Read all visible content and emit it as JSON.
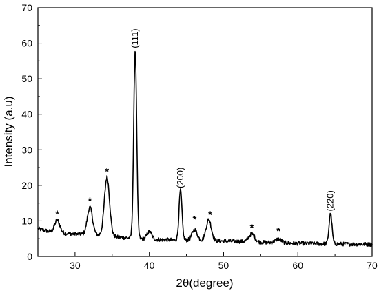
{
  "chart_data": {
    "type": "line",
    "xlabel": "2θ(degree)",
    "ylabel": "Intensity (a.u)",
    "xlim": [
      25,
      70
    ],
    "ylim": [
      0,
      70
    ],
    "x_ticks": [
      30,
      40,
      50,
      60,
      70
    ],
    "y_ticks": [
      0,
      10,
      20,
      30,
      40,
      50,
      60,
      70
    ],
    "grid": false,
    "series": [
      {
        "baseline": [
          [
            25,
            7.8
          ],
          [
            27,
            6.8
          ],
          [
            30,
            6.3
          ],
          [
            33,
            6.0
          ],
          [
            36,
            5.4
          ],
          [
            38,
            5.1
          ],
          [
            42,
            4.7
          ],
          [
            44,
            4.6
          ],
          [
            48,
            4.5
          ],
          [
            52,
            4.2
          ],
          [
            55,
            4.0
          ],
          [
            58,
            3.8
          ],
          [
            62,
            3.6
          ],
          [
            66,
            3.5
          ],
          [
            70,
            3.4
          ]
        ],
        "peaks": [
          {
            "x": 27.6,
            "y": 10.2,
            "w": 0.35
          },
          {
            "x": 32.0,
            "y": 13.8,
            "w": 0.35
          },
          {
            "x": 34.3,
            "y": 22.3,
            "w": 0.35
          },
          {
            "x": 38.1,
            "y": 58.0,
            "w": 0.2
          },
          {
            "x": 40.0,
            "y": 7.0,
            "w": 0.3
          },
          {
            "x": 44.2,
            "y": 18.5,
            "w": 0.2
          },
          {
            "x": 46.1,
            "y": 7.5,
            "w": 0.35
          },
          {
            "x": 48.0,
            "y": 10.4,
            "w": 0.35
          },
          {
            "x": 53.8,
            "y": 6.3,
            "w": 0.4
          },
          {
            "x": 57.4,
            "y": 4.9,
            "w": 0.4
          },
          {
            "x": 64.4,
            "y": 11.9,
            "w": 0.2
          }
        ]
      }
    ],
    "annotations": [
      {
        "text": "(111)",
        "x": 38.1,
        "y": 58.6,
        "rotate": true
      },
      {
        "text": "(200)",
        "x": 44.2,
        "y": 19.2,
        "rotate": true
      },
      {
        "text": "(220)",
        "x": 64.4,
        "y": 12.7,
        "rotate": true
      },
      {
        "text": "*",
        "x": 27.6,
        "y": 11.0
      },
      {
        "text": "*",
        "x": 32.0,
        "y": 14.6
      },
      {
        "text": "*",
        "x": 34.3,
        "y": 23.0
      },
      {
        "text": "*",
        "x": 46.1,
        "y": 9.5
      },
      {
        "text": "*",
        "x": 48.2,
        "y": 10.8
      },
      {
        "text": "*",
        "x": 53.8,
        "y": 7.2
      },
      {
        "text": "*",
        "x": 57.4,
        "y": 6.2
      }
    ]
  }
}
